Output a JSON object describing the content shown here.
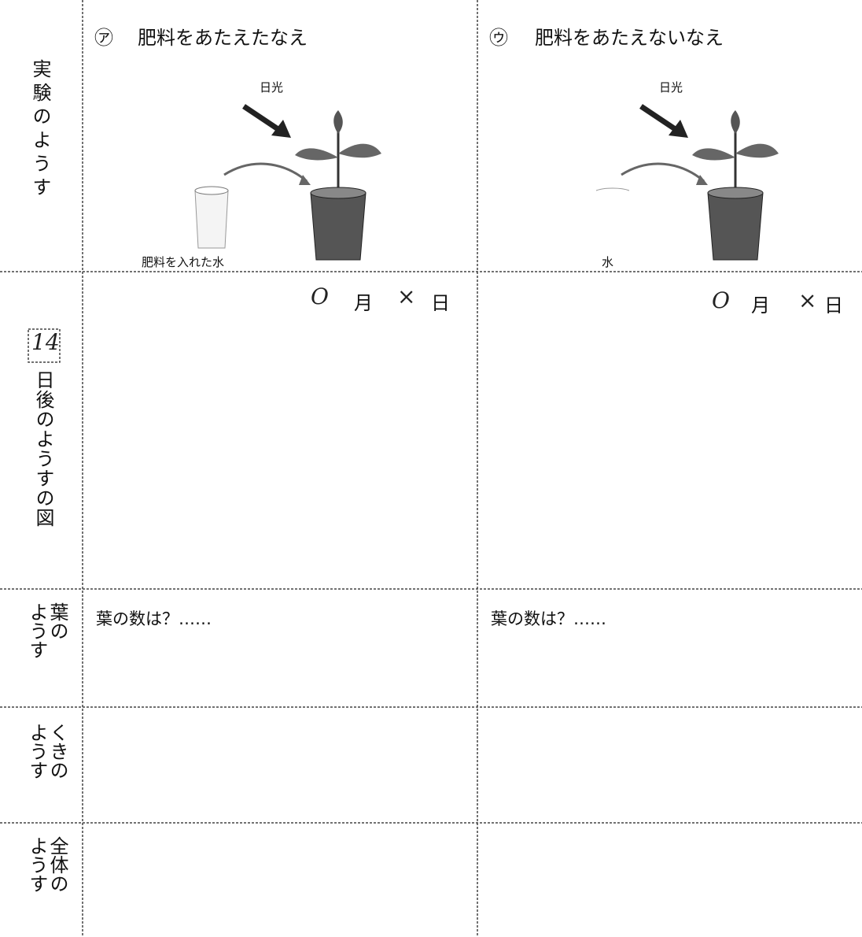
{
  "rows": [
    {
      "label": "実験のようす"
    },
    {
      "days": "14",
      "label": "日後のようすの図"
    },
    {
      "label": [
        "葉の",
        "ようす"
      ]
    },
    {
      "label": [
        "くきの",
        "ようす"
      ]
    },
    {
      "label": [
        "全体の",
        "ようす"
      ]
    }
  ],
  "columns": [
    {
      "mark": "㋐",
      "title": "肥料をあたえたなえ",
      "sunlight": "日光",
      "water": "肥料を入れた水",
      "date": [
        "O",
        "月",
        "×",
        "日"
      ],
      "leaf_count": "葉の数は？……"
    },
    {
      "mark": "㋒",
      "title": "肥料をあたえないなえ",
      "sunlight": "日光",
      "water": "水",
      "date": [
        "O",
        "月",
        "×",
        "日"
      ],
      "leaf_count": "葉の数は？……"
    }
  ]
}
